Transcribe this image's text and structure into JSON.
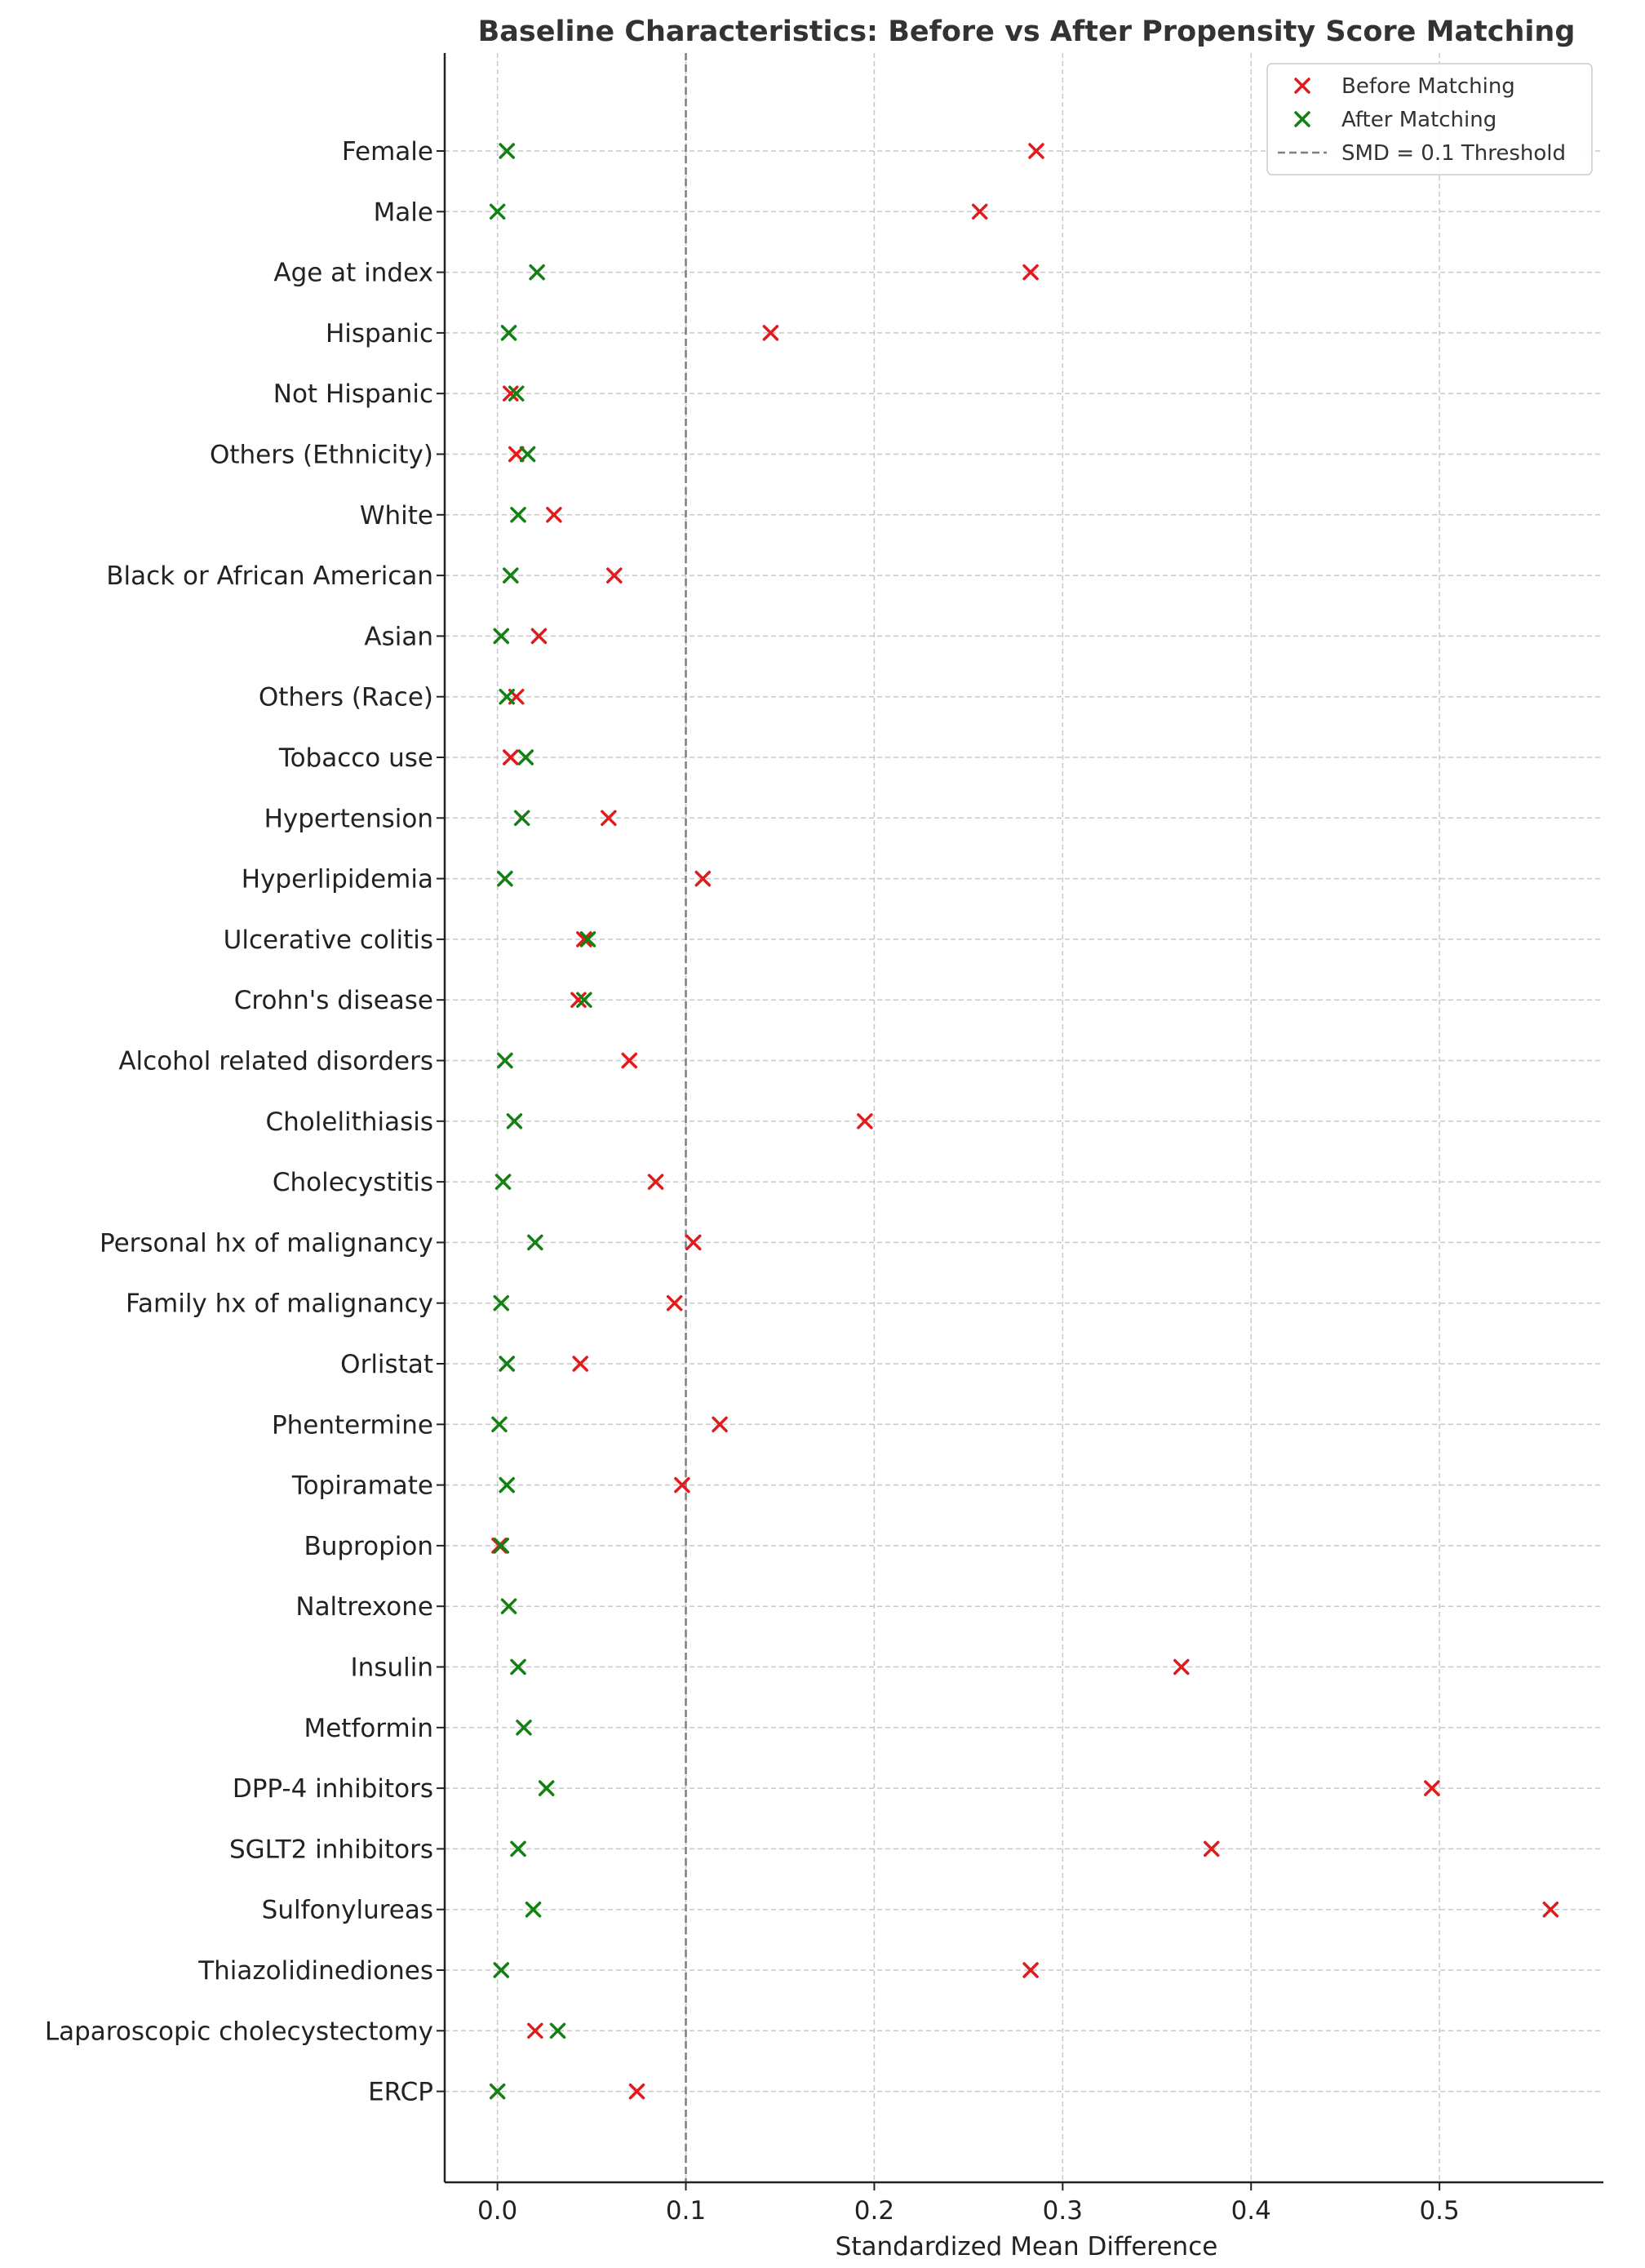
{
  "chart_data": {
    "type": "scatter",
    "title": "Baseline Characteristics: Before vs After Propensity Score Matching",
    "xlabel": "Standardized Mean Difference",
    "ylabel": "",
    "xlim": [
      -0.028,
      0.587
    ],
    "xticks": [
      0.0,
      0.1,
      0.2,
      0.3,
      0.4,
      0.5
    ],
    "xtick_labels": [
      "0.0",
      "0.1",
      "0.2",
      "0.3",
      "0.4",
      "0.5"
    ],
    "grid": true,
    "legend_position": "top-right",
    "marker": "x",
    "threshold": {
      "name": "SMD = 0.1 Threshold",
      "value": 0.1,
      "style": "dashed",
      "color": "#7f7f7f"
    },
    "categories": [
      "Female",
      "Male",
      "Age at index",
      "Hispanic",
      "Not Hispanic",
      "Others (Ethnicity)",
      "White",
      "Black or African American",
      "Asian",
      "Others (Race)",
      "Tobacco use",
      "Hypertension",
      "Hyperlipidemia",
      "Ulcerative colitis",
      "Crohn's disease",
      "Alcohol related disorders",
      "Cholelithiasis",
      "Cholecystitis",
      "Personal hx of malignancy",
      "Family hx of malignancy",
      "Orlistat",
      "Phentermine",
      "Topiramate",
      "Bupropion",
      "Naltrexone",
      "Insulin",
      "Metformin",
      "DPP-4 inhibitors",
      "SGLT2 inhibitors",
      "Sulfonylureas",
      "Thiazolidinediones",
      "Laparoscopic cholecystectomy",
      "ERCP"
    ],
    "series": [
      {
        "name": "Before Matching",
        "color": "#e31a1c",
        "values": [
          0.286,
          0.256,
          0.283,
          0.145,
          0.007,
          0.01,
          0.03,
          0.062,
          0.022,
          0.01,
          0.007,
          0.059,
          0.109,
          0.046,
          0.043,
          0.07,
          0.195,
          0.084,
          0.104,
          0.094,
          0.044,
          0.118,
          0.098,
          0.001,
          null,
          0.363,
          null,
          0.496,
          0.379,
          0.559,
          0.283,
          0.02,
          0.074
        ]
      },
      {
        "name": "After Matching",
        "color": "#138013",
        "values": [
          0.005,
          0.0,
          0.021,
          0.006,
          0.01,
          0.016,
          0.011,
          0.007,
          0.002,
          0.005,
          0.015,
          0.013,
          0.004,
          0.048,
          0.046,
          0.004,
          0.009,
          0.003,
          0.02,
          0.002,
          0.005,
          0.001,
          0.005,
          0.002,
          0.006,
          0.011,
          0.014,
          0.026,
          0.011,
          0.019,
          0.002,
          0.032,
          0.0
        ]
      }
    ]
  }
}
